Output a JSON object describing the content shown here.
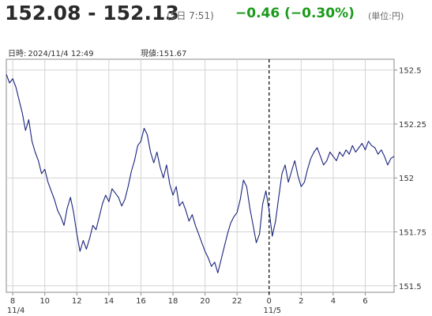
{
  "header": {
    "price_range": "152.08 - 152.13",
    "quote_time": "(5日 7:51)",
    "change": "−0.46 (−0.30%)",
    "unit": "(単位:円)"
  },
  "info": {
    "datetime_label": "日時:",
    "datetime_value": "2024/11/4 12:49",
    "current_label": "現値:",
    "current_value": "151.67"
  },
  "colors": {
    "line": "#1a237e",
    "change": "#1a9a1a",
    "grid": "#d4d4d4"
  },
  "chart_data": {
    "type": "line",
    "title": "",
    "xlabel": "",
    "ylabel": "",
    "x_ticks": [
      "8",
      "10",
      "12",
      "14",
      "16",
      "18",
      "20",
      "22",
      "0",
      "2",
      "4",
      "6"
    ],
    "x_tick_hours": [
      8,
      10,
      12,
      14,
      16,
      18,
      20,
      22,
      24,
      26,
      28,
      30
    ],
    "date_labels": [
      {
        "text": "11/4",
        "hour": 8
      },
      {
        "text": "11/5",
        "hour": 24
      }
    ],
    "y_ticks": [
      152.5,
      152.25,
      152,
      151.75,
      151.5
    ],
    "y_tick_labels": [
      "152.5",
      "152.25",
      "152",
      "151.75",
      "151.5"
    ],
    "ylim": [
      151.47,
      152.55
    ],
    "xlim": [
      7.6,
      31.8
    ],
    "day_divider_hour": 24,
    "grid": true,
    "series": [
      {
        "values": [
          [
            7.6,
            152.48
          ],
          [
            7.8,
            152.44
          ],
          [
            8.0,
            152.46
          ],
          [
            8.2,
            152.42
          ],
          [
            8.4,
            152.36
          ],
          [
            8.6,
            152.3
          ],
          [
            8.8,
            152.22
          ],
          [
            9.0,
            152.27
          ],
          [
            9.2,
            152.17
          ],
          [
            9.4,
            152.12
          ],
          [
            9.6,
            152.08
          ],
          [
            9.8,
            152.02
          ],
          [
            10.0,
            152.04
          ],
          [
            10.2,
            151.98
          ],
          [
            10.4,
            151.94
          ],
          [
            10.6,
            151.9
          ],
          [
            10.8,
            151.85
          ],
          [
            11.0,
            151.82
          ],
          [
            11.2,
            151.78
          ],
          [
            11.4,
            151.86
          ],
          [
            11.6,
            151.91
          ],
          [
            11.8,
            151.84
          ],
          [
            12.0,
            151.74
          ],
          [
            12.2,
            151.66
          ],
          [
            12.4,
            151.71
          ],
          [
            12.6,
            151.67
          ],
          [
            12.8,
            151.72
          ],
          [
            13.0,
            151.78
          ],
          [
            13.2,
            151.76
          ],
          [
            13.4,
            151.82
          ],
          [
            13.6,
            151.88
          ],
          [
            13.8,
            151.92
          ],
          [
            14.0,
            151.89
          ],
          [
            14.2,
            151.95
          ],
          [
            14.4,
            151.93
          ],
          [
            14.6,
            151.91
          ],
          [
            14.8,
            151.87
          ],
          [
            15.0,
            151.9
          ],
          [
            15.2,
            151.96
          ],
          [
            15.4,
            152.03
          ],
          [
            15.6,
            152.08
          ],
          [
            15.8,
            152.15
          ],
          [
            16.0,
            152.17
          ],
          [
            16.2,
            152.23
          ],
          [
            16.4,
            152.2
          ],
          [
            16.6,
            152.12
          ],
          [
            16.8,
            152.07
          ],
          [
            17.0,
            152.12
          ],
          [
            17.2,
            152.05
          ],
          [
            17.4,
            152.0
          ],
          [
            17.6,
            152.06
          ],
          [
            17.8,
            151.97
          ],
          [
            18.0,
            151.92
          ],
          [
            18.2,
            151.96
          ],
          [
            18.4,
            151.87
          ],
          [
            18.6,
            151.89
          ],
          [
            18.8,
            151.85
          ],
          [
            19.0,
            151.8
          ],
          [
            19.2,
            151.83
          ],
          [
            19.4,
            151.78
          ],
          [
            19.6,
            151.74
          ],
          [
            19.8,
            151.7
          ],
          [
            20.0,
            151.66
          ],
          [
            20.2,
            151.63
          ],
          [
            20.4,
            151.59
          ],
          [
            20.6,
            151.61
          ],
          [
            20.8,
            151.56
          ],
          [
            21.0,
            151.62
          ],
          [
            21.2,
            151.68
          ],
          [
            21.4,
            151.74
          ],
          [
            21.6,
            151.79
          ],
          [
            21.8,
            151.82
          ],
          [
            22.0,
            151.84
          ],
          [
            22.2,
            151.9
          ],
          [
            22.4,
            151.99
          ],
          [
            22.6,
            151.96
          ],
          [
            22.8,
            151.86
          ],
          [
            23.0,
            151.78
          ],
          [
            23.2,
            151.7
          ],
          [
            23.4,
            151.74
          ],
          [
            23.6,
            151.88
          ],
          [
            23.8,
            151.94
          ],
          [
            24.0,
            151.85
          ],
          [
            24.2,
            151.73
          ],
          [
            24.4,
            151.8
          ],
          [
            24.6,
            151.91
          ],
          [
            24.8,
            152.02
          ],
          [
            25.0,
            152.06
          ],
          [
            25.2,
            151.98
          ],
          [
            25.4,
            152.03
          ],
          [
            25.6,
            152.08
          ],
          [
            25.8,
            152.01
          ],
          [
            26.0,
            151.96
          ],
          [
            26.2,
            151.98
          ],
          [
            26.4,
            152.04
          ],
          [
            26.6,
            152.09
          ],
          [
            26.8,
            152.12
          ],
          [
            27.0,
            152.14
          ],
          [
            27.2,
            152.1
          ],
          [
            27.4,
            152.06
          ],
          [
            27.6,
            152.08
          ],
          [
            27.8,
            152.12
          ],
          [
            28.0,
            152.1
          ],
          [
            28.2,
            152.08
          ],
          [
            28.4,
            152.12
          ],
          [
            28.6,
            152.1
          ],
          [
            28.8,
            152.13
          ],
          [
            29.0,
            152.11
          ],
          [
            29.2,
            152.15
          ],
          [
            29.4,
            152.12
          ],
          [
            29.6,
            152.14
          ],
          [
            29.8,
            152.16
          ],
          [
            30.0,
            152.13
          ],
          [
            30.2,
            152.17
          ],
          [
            30.4,
            152.15
          ],
          [
            30.6,
            152.14
          ],
          [
            30.8,
            152.11
          ],
          [
            31.0,
            152.13
          ],
          [
            31.2,
            152.1
          ],
          [
            31.4,
            152.06
          ],
          [
            31.6,
            152.09
          ],
          [
            31.8,
            152.1
          ]
        ]
      }
    ]
  }
}
